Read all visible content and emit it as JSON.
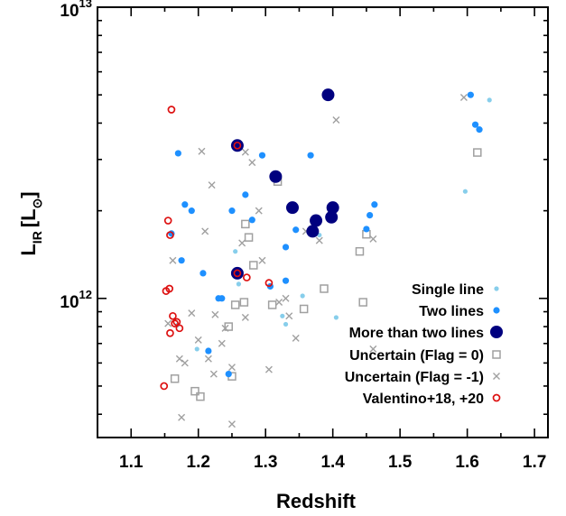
{
  "chart_data": {
    "type": "scatter",
    "xlabel": "Redshift",
    "ylabel_main": "L",
    "ylabel_sub": "IR",
    "ylabel_unit": "[L",
    "ylabel_unit_close": "]",
    "xlim": [
      1.05,
      1.72
    ],
    "ylim_log10": [
      11.5222,
      13.0
    ],
    "yscale": "log",
    "xticks": [
      1.1,
      1.2,
      1.3,
      1.4,
      1.5,
      1.6,
      1.7
    ],
    "xtick_labels": [
      "1.1",
      "1.2",
      "1.3",
      "1.4",
      "1.5",
      "1.6",
      "1.7"
    ],
    "yticks_major": [
      1000000000000.0,
      10000000000000.0
    ],
    "ytick_labels": [
      {
        "base": "10",
        "exp": "12"
      },
      {
        "base": "10",
        "exp": "13"
      }
    ],
    "legend_position": "bottom-right",
    "series": [
      {
        "name": "Single line",
        "marker": "small-dot",
        "color": "#87ceeb",
        "points": [
          [
            1.169,
            810000000000.0
          ],
          [
            1.198,
            670000000000.0
          ],
          [
            1.255,
            1450000000000.0
          ],
          [
            1.26,
            1120000000000.0
          ],
          [
            1.33,
            815000000000.0
          ],
          [
            1.325,
            870000000000.0
          ],
          [
            1.355,
            1020000000000.0
          ],
          [
            1.405,
            860000000000.0
          ],
          [
            1.597,
            2330000000000.0
          ],
          [
            1.633,
            4800000000000.0
          ],
          [
            1.38,
            1650000000000.0
          ]
        ]
      },
      {
        "name": "Two lines",
        "marker": "dot",
        "color": "#1e90ff",
        "points": [
          [
            1.17,
            3150000000000.0
          ],
          [
            1.18,
            2100000000000.0
          ],
          [
            1.19,
            2000000000000.0
          ],
          [
            1.16,
            1670000000000.0
          ],
          [
            1.175,
            1350000000000.0
          ],
          [
            1.207,
            1220000000000.0
          ],
          [
            1.215,
            660000000000.0
          ],
          [
            1.235,
            1000000000000.0
          ],
          [
            1.25,
            2000000000000.0
          ],
          [
            1.27,
            2270000000000.0
          ],
          [
            1.28,
            1860000000000.0
          ],
          [
            1.295,
            3100000000000.0
          ],
          [
            1.307,
            1100000000000.0
          ],
          [
            1.33,
            1500000000000.0
          ],
          [
            1.33,
            1150000000000.0
          ],
          [
            1.345,
            1720000000000.0
          ],
          [
            1.367,
            3100000000000.0
          ],
          [
            1.455,
            1930000000000.0
          ],
          [
            1.462,
            2100000000000.0
          ],
          [
            1.45,
            1730000000000.0
          ],
          [
            1.605,
            5000000000000.0
          ],
          [
            1.612,
            3950000000000.0
          ],
          [
            1.618,
            3800000000000.0
          ],
          [
            1.262,
            3350000000000.0
          ],
          [
            1.245,
            550000000000.0
          ],
          [
            1.23,
            1000000000000.0
          ]
        ]
      },
      {
        "name": "More than two lines",
        "marker": "big-dot",
        "color": "#00007f",
        "points": [
          [
            1.258,
            3350000000000.0
          ],
          [
            1.258,
            1220000000000.0
          ],
          [
            1.315,
            2620000000000.0
          ],
          [
            1.34,
            2050000000000.0
          ],
          [
            1.37,
            1700000000000.0
          ],
          [
            1.375,
            1850000000000.0
          ],
          [
            1.393,
            5000000000000.0
          ],
          [
            1.398,
            1900000000000.0
          ],
          [
            1.4,
            2050000000000.0
          ]
        ]
      },
      {
        "name": "Uncertain (Flag = 0)",
        "marker": "open-square",
        "color": "#a0a0a0",
        "points": [
          [
            1.165,
            530000000000.0
          ],
          [
            1.195,
            480000000000.0
          ],
          [
            1.203,
            460000000000.0
          ],
          [
            1.245,
            800000000000.0
          ],
          [
            1.255,
            950000000000.0
          ],
          [
            1.268,
            970000000000.0
          ],
          [
            1.27,
            1800000000000.0
          ],
          [
            1.275,
            1620000000000.0
          ],
          [
            1.282,
            1300000000000.0
          ],
          [
            1.31,
            950000000000.0
          ],
          [
            1.318,
            2520000000000.0
          ],
          [
            1.357,
            920000000000.0
          ],
          [
            1.387,
            1080000000000.0
          ],
          [
            1.44,
            1450000000000.0
          ],
          [
            1.445,
            970000000000.0
          ],
          [
            1.45,
            1660000000000.0
          ],
          [
            1.615,
            3170000000000.0
          ],
          [
            1.25,
            540000000000.0
          ]
        ]
      },
      {
        "name": "Uncertain (Flag = -1)",
        "marker": "cross",
        "color": "#a0a0a0",
        "points": [
          [
            1.155,
            820000000000.0
          ],
          [
            1.162,
            1350000000000.0
          ],
          [
            1.172,
            620000000000.0
          ],
          [
            1.18,
            600000000000.0
          ],
          [
            1.19,
            890000000000.0
          ],
          [
            1.2,
            720000000000.0
          ],
          [
            1.205,
            3200000000000.0
          ],
          [
            1.21,
            1700000000000.0
          ],
          [
            1.215,
            620000000000.0
          ],
          [
            1.22,
            2450000000000.0
          ],
          [
            1.223,
            550000000000.0
          ],
          [
            1.225,
            880000000000.0
          ],
          [
            1.235,
            700000000000.0
          ],
          [
            1.24,
            790000000000.0
          ],
          [
            1.25,
            580000000000.0
          ],
          [
            1.25,
            370000000000.0
          ],
          [
            1.265,
            1550000000000.0
          ],
          [
            1.27,
            860000000000.0
          ],
          [
            1.28,
            2930000000000.0
          ],
          [
            1.29,
            2000000000000.0
          ],
          [
            1.295,
            1350000000000.0
          ],
          [
            1.305,
            570000000000.0
          ],
          [
            1.32,
            970000000000.0
          ],
          [
            1.33,
            1000000000000.0
          ],
          [
            1.335,
            870000000000.0
          ],
          [
            1.345,
            730000000000.0
          ],
          [
            1.36,
            1700000000000.0
          ],
          [
            1.38,
            1580000000000.0
          ],
          [
            1.405,
            4100000000000.0
          ],
          [
            1.46,
            670000000000.0
          ],
          [
            1.46,
            1600000000000.0
          ],
          [
            1.595,
            4900000000000.0
          ],
          [
            1.175,
            390000000000.0
          ],
          [
            1.27,
            3180000000000.0
          ]
        ]
      },
      {
        "name": "Valentino+18, +20",
        "marker": "open-circle",
        "color": "#dd1111",
        "points": [
          [
            1.149,
            500000000000.0
          ],
          [
            1.152,
            1060000000000.0
          ],
          [
            1.155,
            1850000000000.0
          ],
          [
            1.157,
            1080000000000.0
          ],
          [
            1.16,
            4450000000000.0
          ],
          [
            1.158,
            760000000000.0
          ],
          [
            1.162,
            870000000000.0
          ],
          [
            1.165,
            820000000000.0
          ],
          [
            1.168,
            830000000000.0
          ],
          [
            1.172,
            790000000000.0
          ],
          [
            1.158,
            1650000000000.0
          ],
          [
            1.258,
            3350000000000.0
          ],
          [
            1.258,
            1220000000000.0
          ],
          [
            1.272,
            1180000000000.0
          ],
          [
            1.305,
            1130000000000.0
          ]
        ]
      }
    ]
  }
}
